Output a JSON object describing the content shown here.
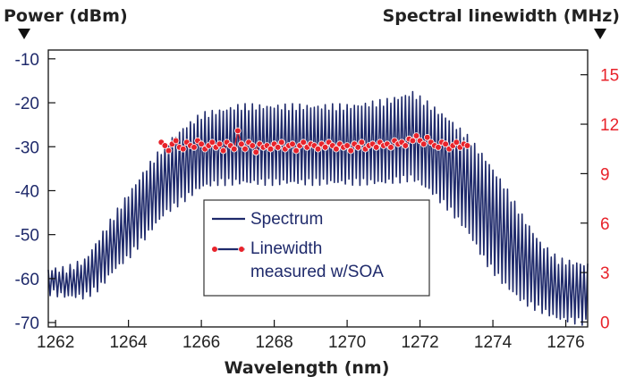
{
  "chart_data": {
    "type": "line",
    "left_title": "Power (dBm)",
    "right_title": "Spectral linewidth (MHz)",
    "xlabel": "Wavelength (nm)",
    "xlim": [
      1261.8,
      1276.6
    ],
    "ylim_left": [
      -71,
      -8
    ],
    "ylim_right": [
      -0.3,
      16.5
    ],
    "x_ticks": [
      "1262",
      "1264",
      "1266",
      "1268",
      "1270",
      "1272",
      "1274",
      "1276"
    ],
    "x_tick_values": [
      1262,
      1264,
      1266,
      1268,
      1270,
      1272,
      1274,
      1276
    ],
    "left_ticks": [
      "-10",
      "-20",
      "-30",
      "-40",
      "-50",
      "-60",
      "-70"
    ],
    "left_tick_values": [
      -10,
      -20,
      -30,
      -40,
      -50,
      -60,
      -70
    ],
    "right_ticks": [
      "15",
      "12",
      "9",
      "6",
      "3",
      "0"
    ],
    "right_tick_values": [
      15,
      12,
      9,
      6,
      3,
      0
    ],
    "colors": {
      "spectrum": "#1f2a6b",
      "linewidth": "#e8232b",
      "left_axis": "#1f2a6b",
      "right_axis": "#e8232b"
    },
    "legend": {
      "placement": "center-bottom",
      "spectrum_label": "Spectrum",
      "linewidth_label_line1": "Linewidth",
      "linewidth_label_line2": "measured w/SOA"
    },
    "series": [
      {
        "name": "Spectrum",
        "axis": "left",
        "description_key": "spectrum",
        "comb_period_nm": 0.1,
        "upper_envelope": {
          "x": [
            1261.8,
            1262.3,
            1262.8,
            1263.2,
            1263.6,
            1264.0,
            1264.5,
            1265.0,
            1265.5,
            1266.0,
            1266.5,
            1267.0,
            1268.0,
            1269.0,
            1270.0,
            1271.0,
            1271.8,
            1272.3,
            1272.8,
            1273.3,
            1273.8,
            1274.3,
            1274.8,
            1275.3,
            1275.8,
            1276.6
          ],
          "y": [
            -58,
            -58,
            -56,
            -51,
            -46,
            -41,
            -35,
            -30,
            -26,
            -23,
            -22,
            -21,
            -21,
            -21,
            -21,
            -20,
            -18,
            -21,
            -24,
            -28,
            -33,
            -39,
            -46,
            -52,
            -56,
            -57
          ]
        },
        "lower_envelope": {
          "x": [
            1261.8,
            1262.3,
            1262.8,
            1263.2,
            1263.6,
            1264.0,
            1264.5,
            1265.0,
            1265.5,
            1266.0,
            1266.5,
            1267.0,
            1268.0,
            1269.0,
            1270.0,
            1271.0,
            1271.8,
            1272.3,
            1272.8,
            1273.3,
            1273.8,
            1274.3,
            1274.8,
            1275.3,
            1275.8,
            1276.6
          ],
          "y": [
            -63,
            -64,
            -64,
            -62,
            -58,
            -55,
            -50,
            -45,
            -42,
            -39,
            -38,
            -38,
            -38,
            -38,
            -38,
            -38,
            -37,
            -40,
            -44,
            -49,
            -56,
            -61,
            -65,
            -67,
            -69,
            -70
          ]
        }
      },
      {
        "name": "Linewidth measured w/SOA",
        "axis": "right",
        "x": [
          1264.9,
          1265.0,
          1265.1,
          1265.2,
          1265.3,
          1265.4,
          1265.5,
          1265.6,
          1265.7,
          1265.8,
          1265.9,
          1266.0,
          1266.1,
          1266.2,
          1266.3,
          1266.4,
          1266.5,
          1266.6,
          1266.7,
          1266.8,
          1266.9,
          1267.0,
          1267.1,
          1267.2,
          1267.3,
          1267.4,
          1267.5,
          1267.6,
          1267.7,
          1267.8,
          1267.9,
          1268.0,
          1268.1,
          1268.2,
          1268.3,
          1268.4,
          1268.5,
          1268.6,
          1268.7,
          1268.8,
          1268.9,
          1269.0,
          1269.1,
          1269.2,
          1269.3,
          1269.4,
          1269.5,
          1269.6,
          1269.7,
          1269.8,
          1269.9,
          1270.0,
          1270.1,
          1270.2,
          1270.3,
          1270.4,
          1270.5,
          1270.6,
          1270.7,
          1270.8,
          1270.9,
          1271.0,
          1271.1,
          1271.2,
          1271.3,
          1271.4,
          1271.5,
          1271.6,
          1271.7,
          1271.8,
          1271.9,
          1272.0,
          1272.1,
          1272.2,
          1272.3,
          1272.4,
          1272.5,
          1272.6,
          1272.7,
          1272.8,
          1272.9,
          1273.0,
          1273.1,
          1273.2,
          1273.3
        ],
        "y": [
          10.9,
          10.7,
          10.4,
          10.8,
          11.0,
          10.6,
          10.5,
          10.9,
          10.7,
          10.6,
          11.0,
          10.8,
          10.5,
          10.7,
          10.9,
          10.6,
          10.8,
          10.4,
          10.9,
          10.7,
          10.5,
          11.6,
          10.8,
          10.5,
          10.9,
          10.7,
          10.3,
          10.8,
          10.6,
          10.7,
          10.5,
          10.8,
          10.6,
          10.9,
          10.5,
          10.7,
          10.8,
          10.4,
          10.7,
          10.9,
          10.6,
          10.8,
          10.7,
          10.5,
          10.8,
          10.6,
          10.9,
          10.7,
          10.5,
          10.8,
          10.6,
          10.7,
          10.4,
          10.8,
          10.6,
          10.9,
          10.5,
          10.7,
          10.8,
          10.6,
          10.9,
          10.7,
          10.8,
          10.6,
          11.0,
          10.8,
          10.9,
          10.7,
          11.1,
          11.0,
          11.3,
          11.0,
          10.8,
          11.2,
          10.9,
          10.7,
          10.6,
          10.9,
          10.8,
          10.5,
          10.7,
          10.9,
          10.6,
          10.8,
          10.7
        ]
      }
    ]
  }
}
